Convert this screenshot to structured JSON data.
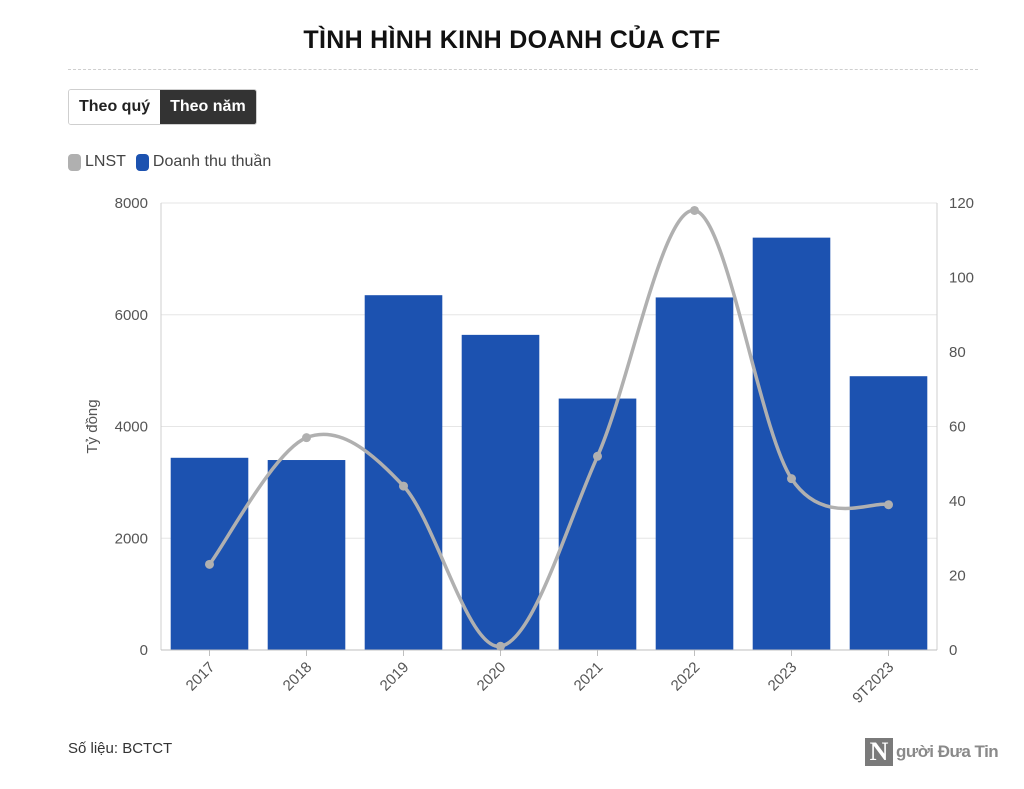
{
  "header": {
    "title": "TÌNH HÌNH KINH DOANH CỦA CTF"
  },
  "toggle": {
    "quarter_label": "Theo quý",
    "year_label": "Theo năm",
    "selected": "year"
  },
  "footer": {
    "source": "Số liệu: BCTCT",
    "brand_mark": "N",
    "brand_name": "gười Đưa Tin"
  },
  "colors": {
    "bar": "#1c52b0",
    "line": "#b0b0b0",
    "grid": "#e6e6e6"
  },
  "chart_data": {
    "type": "bar",
    "categories": [
      "2017",
      "2018",
      "2019",
      "2020",
      "2021",
      "2022",
      "2023",
      "9T2023"
    ],
    "series": [
      {
        "name": "Doanh thu thuần",
        "type": "bar",
        "axis": "left",
        "values": [
          3440,
          3400,
          6350,
          5640,
          4500,
          6310,
          7380,
          4900
        ]
      },
      {
        "name": "LNST",
        "type": "line",
        "axis": "right",
        "values": [
          23,
          57,
          44,
          1,
          52,
          118,
          46,
          39
        ]
      }
    ],
    "legend": {
      "position": "top-left",
      "entries": [
        "LNST",
        "Doanh thu thuần"
      ]
    },
    "ylabel": "Tỷ đồng",
    "ylim": [
      0,
      8000
    ],
    "y_ticks": [
      0,
      2000,
      4000,
      6000,
      8000
    ],
    "y2lim": [
      0,
      120
    ],
    "y2_ticks": [
      0,
      20,
      40,
      60,
      80,
      100,
      120
    ],
    "grid": true
  }
}
